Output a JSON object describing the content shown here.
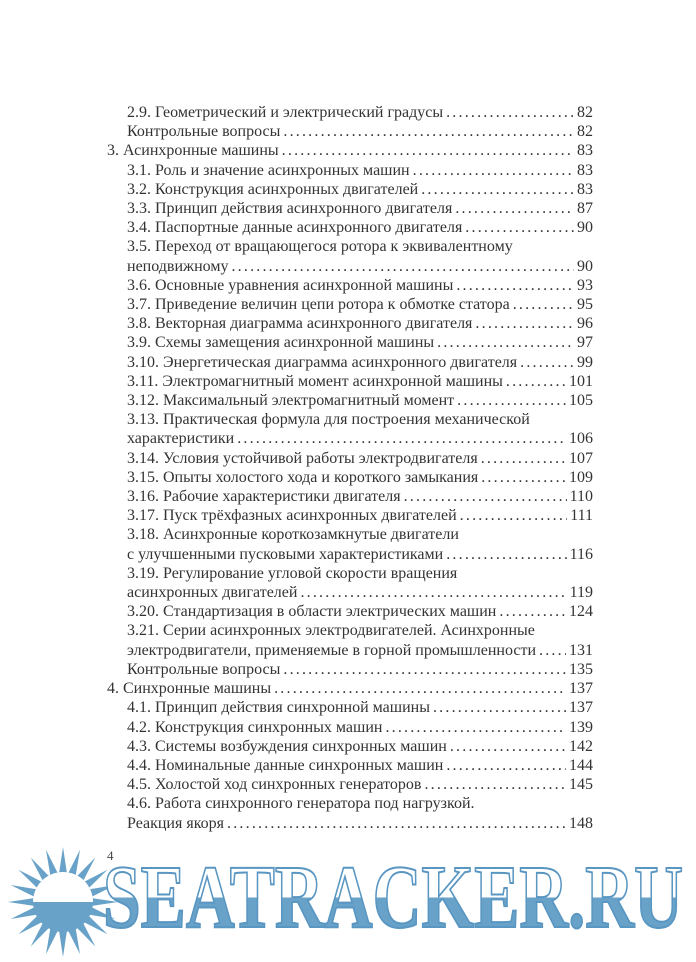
{
  "page": {
    "footer_page_number": "4"
  },
  "toc": {
    "lines": [
      {
        "text": "2.9. Геометрический и электрический градусы",
        "page": "82",
        "indent": 1
      },
      {
        "text": "Контрольные вопросы",
        "page": "82",
        "indent": 1
      },
      {
        "text": "3. Асинхронные машины",
        "page": "83",
        "indent": 0
      },
      {
        "text": "3.1. Роль и значение асинхронных машин",
        "page": "83",
        "indent": 1
      },
      {
        "text": "3.2. Конструкция асинхронных двигателей",
        "page": "83",
        "indent": 1
      },
      {
        "text": "3.3. Принцип действия асинхронного двигателя",
        "page": "87",
        "indent": 1
      },
      {
        "text": "3.4. Паспортные данные асинхронного двигателя",
        "page": "90",
        "indent": 1
      },
      {
        "text": "3.5. Переход от вращающегося ротора к эквивалентному",
        "page": null,
        "indent": 1
      },
      {
        "text": "неподвижному",
        "page": "90",
        "indent": 1
      },
      {
        "text": "3.6. Основные уравнения асинхронной машины",
        "page": "93",
        "indent": 1
      },
      {
        "text": "3.7. Приведение величин цепи ротора к обмотке статора",
        "page": "95",
        "indent": 1
      },
      {
        "text": "3.8. Векторная диаграмма асинхронного двигателя",
        "page": "96",
        "indent": 1
      },
      {
        "text": "3.9. Схемы замещения асинхронной машины",
        "page": "97",
        "indent": 1
      },
      {
        "text": "3.10. Энергетическая диаграмма асинхронного двигателя",
        "page": "99",
        "indent": 1
      },
      {
        "text": "3.11. Электромагнитный момент асинхронной машины",
        "page": "101",
        "indent": 1
      },
      {
        "text": "3.12. Максимальный электромагнитный момент",
        "page": "105",
        "indent": 1
      },
      {
        "text": "3.13. Практическая формула для построения механической",
        "page": null,
        "indent": 1
      },
      {
        "text": "характеристики",
        "page": "106",
        "indent": 1
      },
      {
        "text": "3.14. Условия устойчивой работы электродвигателя",
        "page": "107",
        "indent": 1
      },
      {
        "text": "3.15. Опыты холостого хода и короткого замыкания",
        "page": "109",
        "indent": 1
      },
      {
        "text": "3.16. Рабочие характеристики двигателя",
        "page": "110",
        "indent": 1
      },
      {
        "text": "3.17. Пуск трёхфазных асинхронных двигателей",
        "page": "111",
        "indent": 1
      },
      {
        "text": "3.18. Асинхронные короткозамкнутые двигатели",
        "page": null,
        "indent": 1
      },
      {
        "text": "с улучшенными пусковыми характеристиками",
        "page": "116",
        "indent": 1
      },
      {
        "text": "3.19. Регулирование угловой скорости вращения",
        "page": null,
        "indent": 1
      },
      {
        "text": "асинхронных двигателей",
        "page": "119",
        "indent": 1
      },
      {
        "text": "3.20. Стандартизация в области электрических машин",
        "page": "124",
        "indent": 1
      },
      {
        "text": "3.21. Серии асинхронных электродвигателей. Асинхронные",
        "page": null,
        "indent": 1
      },
      {
        "text": "электродвигатели, применяемые в горной промышленности",
        "page": "131",
        "indent": 1
      },
      {
        "text": "Контрольные вопросы",
        "page": "135",
        "indent": 1
      },
      {
        "text": "4. Синхронные машины",
        "page": "137",
        "indent": 0
      },
      {
        "text": "4.1. Принцип действия синхронной машины",
        "page": "137",
        "indent": 1
      },
      {
        "text": "4.2. Конструкция синхронных машин",
        "page": "139",
        "indent": 1
      },
      {
        "text": "4.3. Системы возбуждения синхронных машин",
        "page": "142",
        "indent": 1
      },
      {
        "text": "4.4. Номинальные данные синхронных машин",
        "page": "144",
        "indent": 1
      },
      {
        "text": "4.5. Холостой ход синхронных генераторов",
        "page": "145",
        "indent": 1
      },
      {
        "text": "4.6. Работа синхронного генератора под нагрузкой.",
        "page": null,
        "indent": 1
      },
      {
        "text": "Реакция якоря",
        "page": "148",
        "indent": 1
      }
    ]
  },
  "watermark": {
    "text": "SEATRACKER.RU",
    "blue": "#68a2c8",
    "outline_blue": "#5996c2",
    "white": "#ffffff"
  }
}
